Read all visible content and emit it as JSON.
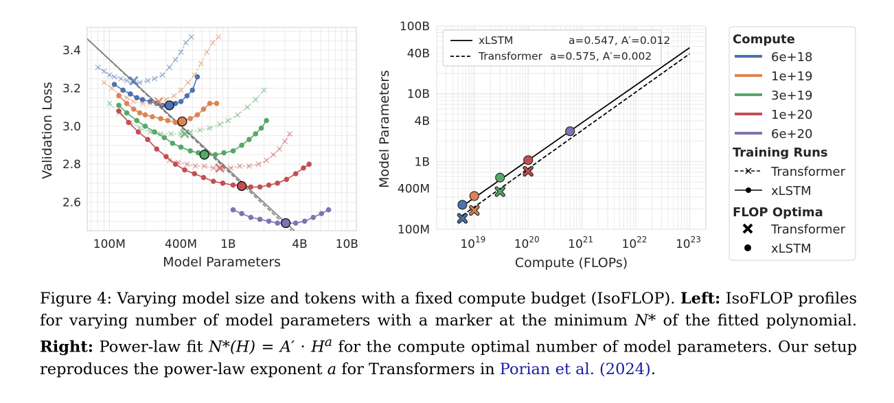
{
  "colors": {
    "c6e18": "#4c72b0",
    "c1e19": "#dd8452",
    "c3e19": "#55a868",
    "c1e20": "#c44e52",
    "c6e20": "#8172b3",
    "grid": "#e5e5e5",
    "cite": "#1a1aa6"
  },
  "left_chart": {
    "ylabel": "Validation Loss",
    "xlabel": "Model Parameters",
    "yticks": [
      {
        "v": 2.6,
        "label": "2.6"
      },
      {
        "v": 2.8,
        "label": "2.8"
      },
      {
        "v": 3.0,
        "label": "3.0"
      },
      {
        "v": 3.2,
        "label": "3.2"
      },
      {
        "v": 3.4,
        "label": "3.4"
      }
    ],
    "xticks": [
      {
        "v": 100000000.0,
        "label": "100M"
      },
      {
        "v": 400000000.0,
        "label": "400M"
      },
      {
        "v": 1000000000.0,
        "label": "1B"
      },
      {
        "v": 4000000000.0,
        "label": "4B"
      },
      {
        "v": 10000000000.0,
        "label": "10B"
      }
    ]
  },
  "right_chart": {
    "ylabel": "Model Parameters",
    "xlabel": "Compute (FLOPs)",
    "yticks": [
      {
        "v": 100000000.0,
        "label": "100M"
      },
      {
        "v": 400000000.0,
        "label": "400M"
      },
      {
        "v": 1000000000.0,
        "label": "1B"
      },
      {
        "v": 4000000000.0,
        "label": "4B"
      },
      {
        "v": 10000000000.0,
        "label": "10B"
      },
      {
        "v": 40000000000.0,
        "label": "40B"
      },
      {
        "v": 100000000000.0,
        "label": "100B"
      }
    ],
    "xticks": [
      {
        "v": 1e+19,
        "base": "10",
        "exp": "19"
      },
      {
        "v": 1e+20,
        "base": "10",
        "exp": "20"
      },
      {
        "v": 1e+21,
        "base": "10",
        "exp": "21"
      },
      {
        "v": 1e+22,
        "base": "10",
        "exp": "22"
      },
      {
        "v": 1e+23,
        "base": "10",
        "exp": "23"
      }
    ],
    "fit_legend": {
      "xlstm_name": "xLSTM",
      "xlstm_params": "a=0.547, A′=0.012",
      "transformer_name": "Transformer",
      "transformer_params": "a=0.575, A′=0.002"
    }
  },
  "legend": {
    "compute_title": "Compute",
    "compute_items": [
      "6e+18",
      "1e+19",
      "3e+19",
      "1e+20",
      "6e+20"
    ],
    "runs_title": "Training Runs",
    "runs_items": [
      "Transformer",
      "xLSTM"
    ],
    "optima_title": "FLOP Optima",
    "optima_items": [
      "Transformer",
      "xLSTM"
    ]
  },
  "chart_data": [
    {
      "type": "line",
      "title": "IsoFLOP profiles",
      "xlabel": "Model Parameters",
      "ylabel": "Validation Loss",
      "xscale": "log",
      "xlim": [
        65000000.0,
        12000000000.0
      ],
      "ylim": [
        2.45,
        3.52
      ],
      "series": [
        {
          "name": "6e+18 xLSTM",
          "compute": "6e+18",
          "kind": "xlstm",
          "x": [
            110000000.0,
            130000000.0,
            150000000.0,
            170000000.0,
            190000000.0,
            220000000.0,
            250000000.0,
            280000000.0,
            320000000.0,
            360000000.0,
            400000000.0,
            450000000.0,
            500000000.0,
            550000000.0
          ],
          "y": [
            3.22,
            3.19,
            3.17,
            3.15,
            3.14,
            3.13,
            3.12,
            3.11,
            3.11,
            3.12,
            3.13,
            3.16,
            3.19,
            3.26
          ]
        },
        {
          "name": "6e+18 Transformer",
          "compute": "6e+18",
          "kind": "transformer",
          "x": [
            80000000.0,
            90000000.0,
            100000000.0,
            110000000.0,
            125000000.0,
            140000000.0,
            160000000.0,
            180000000.0,
            210000000.0,
            240000000.0,
            280000000.0,
            320000000.0,
            360000000.0,
            400000000.0,
            440000000.0,
            490000000.0
          ],
          "y": [
            3.31,
            3.29,
            3.27,
            3.26,
            3.25,
            3.24,
            3.23,
            3.23,
            3.24,
            3.25,
            3.27,
            3.31,
            3.35,
            3.39,
            3.44,
            3.47
          ]
        },
        {
          "name": "1e+19 xLSTM",
          "compute": "1e+19",
          "kind": "xlstm",
          "x": [
            120000000.0,
            140000000.0,
            160000000.0,
            180000000.0,
            200000000.0,
            230000000.0,
            270000000.0,
            310000000.0,
            360000000.0,
            420000000.0,
            480000000.0,
            550000000.0,
            620000000.0,
            700000000.0,
            800000000.0
          ],
          "y": [
            3.16,
            3.12,
            3.09,
            3.07,
            3.06,
            3.05,
            3.04,
            3.03,
            3.02,
            3.03,
            3.04,
            3.06,
            3.09,
            3.12,
            3.12
          ]
        },
        {
          "name": "1e+19 Transformer",
          "compute": "1e+19",
          "kind": "transformer",
          "x": [
            90000000.0,
            105000000.0,
            120000000.0,
            140000000.0,
            160000000.0,
            190000000.0,
            220000000.0,
            260000000.0,
            300000000.0,
            350000000.0,
            400000000.0,
            460000000.0,
            520000000.0,
            590000000.0,
            660000000.0,
            740000000.0,
            830000000.0
          ],
          "y": [
            3.23,
            3.2,
            3.17,
            3.15,
            3.13,
            3.12,
            3.12,
            3.13,
            3.14,
            3.16,
            3.19,
            3.23,
            3.27,
            3.33,
            3.39,
            3.44,
            3.47
          ]
        },
        {
          "name": "3e+19 xLSTM",
          "compute": "3e+19",
          "kind": "xlstm",
          "x": [
            120000000.0,
            140000000.0,
            170000000.0,
            200000000.0,
            240000000.0,
            290000000.0,
            340000000.0,
            400000000.0,
            480000000.0,
            560000000.0,
            660000000.0,
            780000000.0,
            920000000.0,
            1100000000.0,
            1300000000.0,
            1500000000.0,
            1700000000.0,
            1900000000.0,
            2100000000.0
          ],
          "y": [
            3.11,
            3.07,
            3.03,
            3,
            2.97,
            2.94,
            2.91,
            2.89,
            2.87,
            2.86,
            2.85,
            2.85,
            2.86,
            2.87,
            2.9,
            2.93,
            2.96,
            2.99,
            3.03
          ]
        },
        {
          "name": "3e+19 Transformer",
          "compute": "3e+19",
          "kind": "transformer",
          "x": [
            100000000.0,
            120000000.0,
            150000000.0,
            180000000.0,
            220000000.0,
            270000000.0,
            330000000.0,
            400000000.0,
            480000000.0,
            580000000.0,
            700000000.0,
            850000000.0,
            1000000000.0,
            1200000000.0,
            1450000000.0,
            1700000000.0,
            2000000000.0
          ],
          "y": [
            3.12,
            3.07,
            3.02,
            2.99,
            2.97,
            2.96,
            2.96,
            2.96,
            2.97,
            2.98,
            2.99,
            3.01,
            3.03,
            3.06,
            3.1,
            3.14,
            3.19
          ]
        },
        {
          "name": "1e+20 xLSTM",
          "compute": "1e+20",
          "kind": "xlstm",
          "x": [
            120000000.0,
            145000000.0,
            175000000.0,
            210000000.0,
            250000000.0,
            300000000.0,
            360000000.0,
            430000000.0,
            520000000.0,
            620000000.0,
            750000000.0,
            900000000.0,
            1100000000.0,
            1300000000.0,
            1550000000.0,
            1850000000.0,
            2200000000.0,
            2600000000.0,
            3100000000.0,
            3700000000.0,
            4300000000.0,
            4800000000.0
          ],
          "y": [
            3.08,
            3.02,
            2.97,
            2.93,
            2.88,
            2.84,
            2.8,
            2.77,
            2.75,
            2.73,
            2.71,
            2.7,
            2.69,
            2.69,
            2.68,
            2.68,
            2.69,
            2.7,
            2.72,
            2.75,
            2.78,
            2.8
          ]
        },
        {
          "name": "1e+20 Transformer",
          "compute": "1e+20",
          "kind": "transformer",
          "x": [
            320000000.0,
            380000000.0,
            450000000.0,
            530000000.0,
            630000000.0,
            750000000.0,
            900000000.0,
            1050000000.0,
            1250000000.0,
            1500000000.0,
            1800000000.0,
            2100000000.0,
            2400000000.0,
            2700000000.0,
            3000000000.0,
            3300000000.0
          ],
          "y": [
            2.82,
            2.81,
            2.8,
            2.79,
            2.79,
            2.78,
            2.78,
            2.78,
            2.79,
            2.79,
            2.8,
            2.82,
            2.85,
            2.88,
            2.92,
            2.96
          ]
        },
        {
          "name": "6e+20 xLSTM",
          "compute": "6e+20",
          "kind": "xlstm",
          "x": [
            1100000000.0,
            1300000000.0,
            1550000000.0,
            1850000000.0,
            2200000000.0,
            2600000000.0,
            3100000000.0,
            3700000000.0,
            4400000000.0,
            5200000000.0,
            6100000000.0,
            7000000000.0
          ],
          "y": [
            2.56,
            2.54,
            2.52,
            2.51,
            2.5,
            2.49,
            2.49,
            2.49,
            2.5,
            2.52,
            2.54,
            2.56
          ]
        }
      ],
      "optima_xlstm": [
        {
          "compute": "6e+18",
          "x": 320000000.0,
          "y": 3.11
        },
        {
          "compute": "1e+19",
          "x": 410000000.0,
          "y": 3.025
        },
        {
          "compute": "3e+19",
          "x": 630000000.0,
          "y": 2.85
        },
        {
          "compute": "1e+20",
          "x": 1300000000.0,
          "y": 2.685
        },
        {
          "compute": "6e+20",
          "x": 3050000000.0,
          "y": 2.49
        }
      ],
      "optima_transformer": [
        {
          "compute": "6e+18",
          "x": 160000000.0,
          "y": 3.24
        },
        {
          "compute": "1e+19",
          "x": 260000000.0,
          "y": 3.13
        },
        {
          "compute": "3e+19",
          "x": 430000000.0,
          "y": 2.96
        },
        {
          "compute": "1e+20",
          "x": 850000000.0,
          "y": 2.78
        }
      ],
      "fit_lines": [
        {
          "name": "xLSTM",
          "style": "solid",
          "x": [
            65000000.0,
            3600000000.0
          ],
          "y": [
            3.46,
            2.45
          ]
        },
        {
          "name": "Transformer",
          "style": "dashed",
          "x": [
            65000000.0,
            3400000000.0
          ],
          "y": [
            3.46,
            2.45
          ]
        }
      ]
    },
    {
      "type": "scatter",
      "title": "Power-law fit",
      "xlabel": "Compute (FLOPs)",
      "ylabel": "Model Parameters",
      "xscale": "log",
      "yscale": "log",
      "xlim": [
        2e+18,
        2e+23
      ],
      "ylim": [
        100000000.0,
        100000000000.0
      ],
      "series": [
        {
          "name": "xLSTM",
          "a": 0.547,
          "A_prime": 0.012,
          "style": "solid",
          "x": [
            6e+18,
            1e+23
          ],
          "y": [
            220000000.0,
            48000000000.0
          ]
        },
        {
          "name": "Transformer",
          "a": 0.575,
          "A_prime": 0.002,
          "style": "dashed",
          "x": [
            6e+18,
            1e+23
          ],
          "y": [
            160000000.0,
            39000000000.0
          ]
        }
      ],
      "points_xlstm": [
        {
          "compute": "6e+18",
          "x": 6e+18,
          "y": 230000000.0
        },
        {
          "compute": "1e+19",
          "x": 1e+19,
          "y": 310000000.0
        },
        {
          "compute": "3e+19",
          "x": 3e+19,
          "y": 580000000.0
        },
        {
          "compute": "1e+20",
          "x": 1e+20,
          "y": 1050000000.0
        },
        {
          "compute": "6e+20",
          "x": 6e+20,
          "y": 2800000000.0
        }
      ],
      "points_transformer": [
        {
          "compute": "6e+18",
          "x": 6e+18,
          "y": 145000000.0
        },
        {
          "compute": "1e+19",
          "x": 1e+19,
          "y": 190000000.0
        },
        {
          "compute": "3e+19",
          "x": 3e+19,
          "y": 360000000.0
        },
        {
          "compute": "1e+20",
          "x": 1e+20,
          "y": 720000000.0
        }
      ]
    }
  ],
  "caption": {
    "fig_label": "Figure 4: Varying model size and tokens with a fixed compute budget (IsoFLOP). ",
    "left_bold": "Left:",
    "left_text": " IsoFLOP profiles for varying number of model parameters with a marker at the minimum ",
    "nstar": "N*",
    "left_text2": " of the fitted polynomial. ",
    "right_bold": "Right:",
    "right_text": " Power-law fit ",
    "formula": "N*(H) = A′ · H",
    "formula_exp": "a",
    "right_text2": " for the compute optimal number of model parameters. Our setup reproduces the power-law exponent ",
    "a_sym": "a",
    "right_text3": " for Transformers in ",
    "cite": "Porian et al. (2024)",
    "end": "."
  }
}
